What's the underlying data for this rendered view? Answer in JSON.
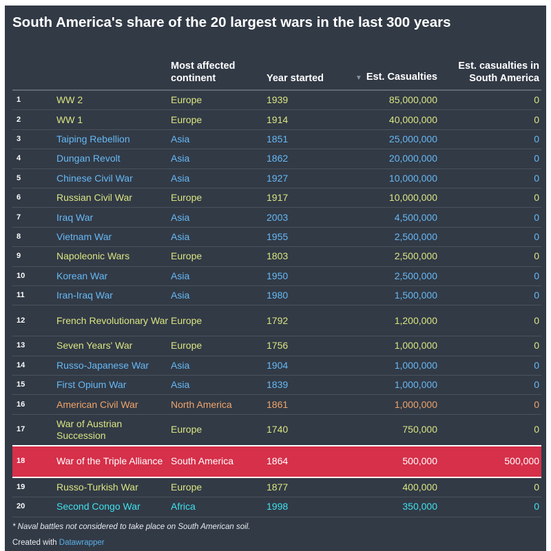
{
  "title": "South America's share of the 20 largest wars in the last 300 years",
  "colors": {
    "background": "#323a46",
    "Europe": "#dae581",
    "Asia": "#66b9f5",
    "North America": "#f0a469",
    "South America": "#ffffff",
    "Africa": "#3fe2ec",
    "highlight": "#d6304a"
  },
  "chart_data": {
    "type": "table",
    "title": "South America's share of the 20 largest wars in the last 300 years",
    "columns": [
      "",
      "",
      "Most affected continent",
      "Year started",
      "Est. Casualties",
      "Est. casualties in South America"
    ],
    "sort_column": "Est. Casualties",
    "rows": [
      {
        "rank": "1",
        "war": "WW 2",
        "continent": "Europe",
        "year": "1939",
        "casualties": "85,000,000",
        "sa_casualties": "0"
      },
      {
        "rank": "2",
        "war": "WW 1",
        "continent": "Europe",
        "year": "1914",
        "casualties": "40,000,000",
        "sa_casualties": "0"
      },
      {
        "rank": "3",
        "war": "Taiping Rebellion",
        "continent": "Asia",
        "year": "1851",
        "casualties": "25,000,000",
        "sa_casualties": "0"
      },
      {
        "rank": "4",
        "war": "Dungan Revolt",
        "continent": "Asia",
        "year": "1862",
        "casualties": "20,000,000",
        "sa_casualties": "0"
      },
      {
        "rank": "5",
        "war": "Chinese Civil War",
        "continent": "Asia",
        "year": "1927",
        "casualties": "10,000,000",
        "sa_casualties": "0"
      },
      {
        "rank": "6",
        "war": "Russian Civil War",
        "continent": "Europe",
        "year": "1917",
        "casualties": "10,000,000",
        "sa_casualties": "0"
      },
      {
        "rank": "7",
        "war": "Iraq War",
        "continent": "Asia",
        "year": "2003",
        "casualties": "4,500,000",
        "sa_casualties": "0"
      },
      {
        "rank": "8",
        "war": "Vietnam War",
        "continent": "Asia",
        "year": "1955",
        "casualties": "2,500,000",
        "sa_casualties": "0"
      },
      {
        "rank": "9",
        "war": "Napoleonic Wars",
        "continent": "Europe",
        "year": "1803",
        "casualties": "2,500,000",
        "sa_casualties": "0"
      },
      {
        "rank": "10",
        "war": "Korean War",
        "continent": "Asia",
        "year": "1950",
        "casualties": "2,500,000",
        "sa_casualties": "0"
      },
      {
        "rank": "11",
        "war": "Iran-Iraq War",
        "continent": "Asia",
        "year": "1980",
        "casualties": "1,500,000",
        "sa_casualties": "0"
      },
      {
        "rank": "12",
        "war": "French Revolutionary War",
        "continent": "Europe",
        "year": "1792",
        "casualties": "1,200,000",
        "sa_casualties": "0"
      },
      {
        "rank": "13",
        "war": "Seven Years' War",
        "continent": "Europe",
        "year": "1756",
        "casualties": "1,000,000",
        "sa_casualties": "0"
      },
      {
        "rank": "14",
        "war": "Russo-Japanese War",
        "continent": "Asia",
        "year": "1904",
        "casualties": "1,000,000",
        "sa_casualties": "0"
      },
      {
        "rank": "15",
        "war": "First Opium War",
        "continent": "Asia",
        "year": "1839",
        "casualties": "1,000,000",
        "sa_casualties": "0"
      },
      {
        "rank": "16",
        "war": "American Civil War",
        "continent": "North America",
        "year": "1861",
        "casualties": "1,000,000",
        "sa_casualties": "0"
      },
      {
        "rank": "17",
        "war": "War of Austrian Succession",
        "continent": "Europe",
        "year": "1740",
        "casualties": "750,000",
        "sa_casualties": "0"
      },
      {
        "rank": "18",
        "war": "War of the Triple Alliance",
        "continent": "South America",
        "year": "1864",
        "casualties": "500,000",
        "sa_casualties": "500,000",
        "highlighted": true
      },
      {
        "rank": "19",
        "war": "Russo-Turkish War",
        "continent": "Europe",
        "year": "1877",
        "casualties": "400,000",
        "sa_casualties": "0"
      },
      {
        "rank": "20",
        "war": "Second Congo War",
        "continent": "Africa",
        "year": "1998",
        "casualties": "350,000",
        "sa_casualties": "0"
      }
    ]
  },
  "footnote": "* Naval battles not considered to take place on South American soil.",
  "credit": {
    "prefix": "Created with ",
    "link": "Datawrapper"
  }
}
